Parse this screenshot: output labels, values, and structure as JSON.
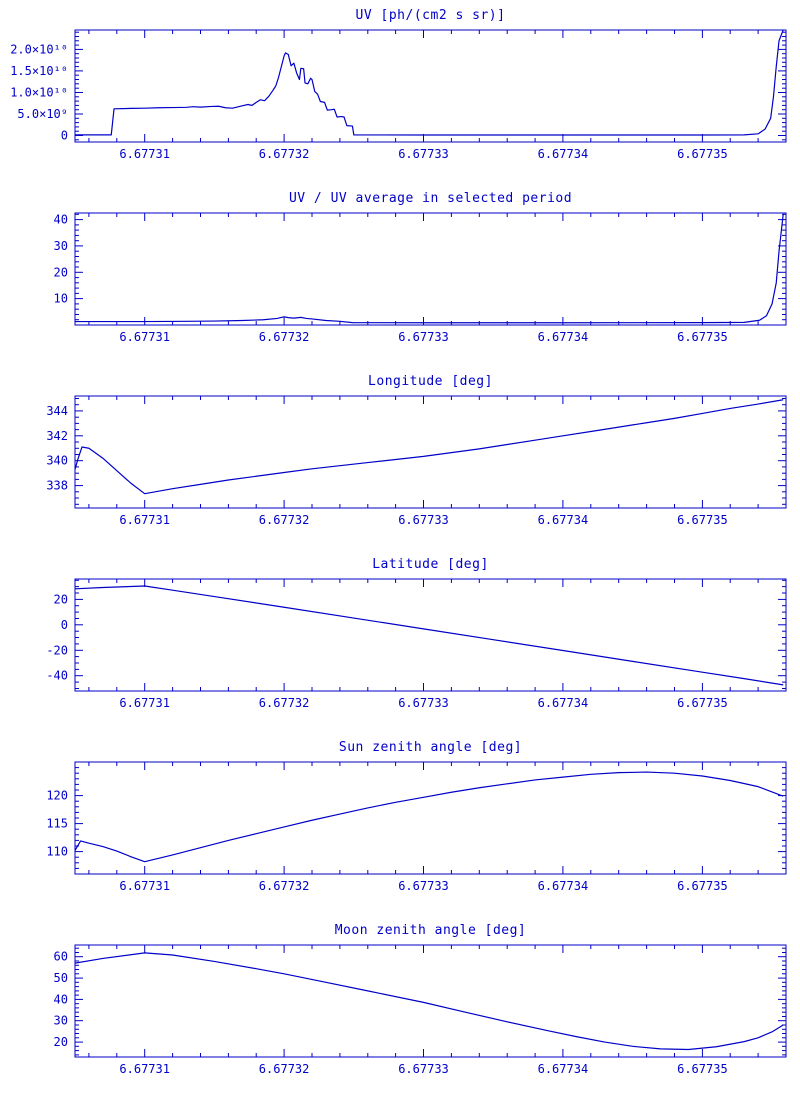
{
  "page": {
    "accent": "#0000C8",
    "background": "#FFFFFF"
  },
  "chart_data": [
    {
      "id": "uv",
      "type": "line",
      "title": "UV [ph/(cm2 s sr)]",
      "xlabel": "",
      "ylabel": "",
      "xlim": [
        6.677305,
        6.677356
      ],
      "ylim": [
        -1500000000.0,
        24500000000.0
      ],
      "x_ticks": [
        6.67731,
        6.67732,
        6.67733,
        6.67734,
        6.67735
      ],
      "x_tick_labels": [
        "6.67731",
        "6.67732",
        "6.67733",
        "6.67734",
        "6.67735"
      ],
      "x_minor_step": 2e-06,
      "y_ticks": [
        0,
        5000000000.0,
        10000000000.0,
        15000000000.0,
        20000000000.0
      ],
      "y_tick_labels": [
        "0",
        "5.0×10⁹",
        "1.0×10¹⁰",
        "1.5×10¹⁰",
        "2.0×10¹⁰"
      ],
      "y_minor_step": 1000000000.0,
      "points": [
        [
          6.677305,
          150000000.0
        ],
        [
          6.6773076,
          150000000.0
        ],
        [
          6.6773078,
          6200000000.0
        ],
        [
          6.677309,
          6300000000.0
        ],
        [
          6.67731,
          6350000000.0
        ],
        [
          6.677311,
          6450000000.0
        ],
        [
          6.677312,
          6500000000.0
        ],
        [
          6.677313,
          6550000000.0
        ],
        [
          6.6773135,
          6700000000.0
        ],
        [
          6.677314,
          6600000000.0
        ],
        [
          6.6773148,
          6750000000.0
        ],
        [
          6.6773153,
          6800000000.0
        ],
        [
          6.6773158,
          6450000000.0
        ],
        [
          6.6773163,
          6350000000.0
        ],
        [
          6.677317,
          6900000000.0
        ],
        [
          6.6773174,
          7200000000.0
        ],
        [
          6.6773177,
          7000000000.0
        ],
        [
          6.677318,
          7700000000.0
        ],
        [
          6.6773183,
          8300000000.0
        ],
        [
          6.6773186,
          8100000000.0
        ],
        [
          6.6773189,
          9100000000.0
        ],
        [
          6.6773192,
          10500000000.0
        ],
        [
          6.6773194,
          11500000000.0
        ],
        [
          6.6773196,
          13500000000.0
        ],
        [
          6.6773198,
          16000000000.0
        ],
        [
          6.67732,
          18500000000.0
        ],
        [
          6.6773201,
          19200000000.0
        ],
        [
          6.6773203,
          18800000000.0
        ],
        [
          6.6773205,
          16200000000.0
        ],
        [
          6.6773207,
          16800000000.0
        ],
        [
          6.6773209,
          14500000000.0
        ],
        [
          6.6773211,
          13000000000.0
        ],
        [
          6.6773212,
          15600000000.0
        ],
        [
          6.6773214,
          15500000000.0
        ],
        [
          6.6773215,
          12200000000.0
        ],
        [
          6.6773217,
          12000000000.0
        ],
        [
          6.6773219,
          13300000000.0
        ],
        [
          6.677322,
          13000000000.0
        ],
        [
          6.6773222,
          10200000000.0
        ],
        [
          6.6773224,
          9600000000.0
        ],
        [
          6.6773226,
          7900000000.0
        ],
        [
          6.6773229,
          7700000000.0
        ],
        [
          6.6773231,
          5900000000.0
        ],
        [
          6.6773234,
          6000000000.0
        ],
        [
          6.6773236,
          6100000000.0
        ],
        [
          6.6773238,
          4300000000.0
        ],
        [
          6.6773241,
          4400000000.0
        ],
        [
          6.6773243,
          4300000000.0
        ],
        [
          6.6773245,
          2300000000.0
        ],
        [
          6.6773249,
          2200000000.0
        ],
        [
          6.677325,
          150000000.0
        ],
        [
          6.67733,
          120000000.0
        ],
        [
          6.67734,
          120000000.0
        ],
        [
          6.67735,
          130000000.0
        ],
        [
          6.677353,
          150000000.0
        ],
        [
          6.677354,
          400000000.0
        ],
        [
          6.6773545,
          1500000000.0
        ],
        [
          6.6773549,
          4000000000.0
        ],
        [
          6.6773551,
          9000000000.0
        ],
        [
          6.6773553,
          16000000000.0
        ],
        [
          6.6773555,
          22000000000.0
        ],
        [
          6.6773558,
          24500000000.0
        ]
      ]
    },
    {
      "id": "uv-ratio",
      "type": "line",
      "title": "UV / UV average in selected period",
      "xlabel": "",
      "ylabel": "",
      "xlim": [
        6.677305,
        6.677356
      ],
      "ylim": [
        0,
        42.5
      ],
      "x_ticks": [
        6.67731,
        6.67732,
        6.67733,
        6.67734,
        6.67735
      ],
      "x_tick_labels": [
        "6.67731",
        "6.67732",
        "6.67733",
        "6.67734",
        "6.67735"
      ],
      "x_minor_step": 2e-06,
      "y_ticks": [
        10,
        20,
        30,
        40
      ],
      "y_tick_labels": [
        "10",
        "20",
        "30",
        "40"
      ],
      "y_minor_step": 2,
      "points": [
        [
          6.677305,
          1.3
        ],
        [
          6.67731,
          1.3
        ],
        [
          6.677313,
          1.4
        ],
        [
          6.677315,
          1.5
        ],
        [
          6.677317,
          1.7
        ],
        [
          6.6773185,
          2.0
        ],
        [
          6.6773195,
          2.5
        ],
        [
          6.67732,
          3.1
        ],
        [
          6.6773203,
          2.8
        ],
        [
          6.6773207,
          2.6
        ],
        [
          6.6773212,
          2.9
        ],
        [
          6.6773216,
          2.5
        ],
        [
          6.677322,
          2.3
        ],
        [
          6.677323,
          1.7
        ],
        [
          6.677324,
          1.4
        ],
        [
          6.6773249,
          0.9
        ],
        [
          6.67733,
          0.85
        ],
        [
          6.67734,
          0.85
        ],
        [
          6.67735,
          0.9
        ],
        [
          6.677353,
          1.0
        ],
        [
          6.6773541,
          1.8
        ],
        [
          6.6773546,
          3.5
        ],
        [
          6.677355,
          8
        ],
        [
          6.6773553,
          16
        ],
        [
          6.6773555,
          28
        ],
        [
          6.6773558,
          42
        ]
      ]
    },
    {
      "id": "longitude",
      "type": "line",
      "title": "Longitude [deg]",
      "xlabel": "",
      "ylabel": "",
      "xlim": [
        6.677305,
        6.677356
      ],
      "ylim": [
        336.2,
        345.2
      ],
      "x_ticks": [
        6.67731,
        6.67732,
        6.67733,
        6.67734,
        6.67735
      ],
      "x_tick_labels": [
        "6.67731",
        "6.67732",
        "6.67733",
        "6.67734",
        "6.67735"
      ],
      "x_minor_step": 2e-06,
      "y_ticks": [
        338,
        340,
        342,
        344
      ],
      "y_tick_labels": [
        "338",
        "340",
        "342",
        "344"
      ],
      "y_minor_step": 0.5,
      "points": [
        [
          6.677305,
          339.3
        ],
        [
          6.6773052,
          340.1
        ],
        [
          6.6773055,
          341.1
        ],
        [
          6.677306,
          341.0
        ],
        [
          6.677307,
          340.2
        ],
        [
          6.677308,
          339.2
        ],
        [
          6.677309,
          338.2
        ],
        [
          6.67731,
          337.35
        ],
        [
          6.677312,
          337.75
        ],
        [
          6.677314,
          338.1
        ],
        [
          6.677316,
          338.45
        ],
        [
          6.677318,
          338.75
        ],
        [
          6.67732,
          339.05
        ],
        [
          6.677322,
          339.35
        ],
        [
          6.677324,
          339.6
        ],
        [
          6.677326,
          339.85
        ],
        [
          6.677328,
          340.1
        ],
        [
          6.67733,
          340.35
        ],
        [
          6.677332,
          340.65
        ],
        [
          6.677334,
          340.95
        ],
        [
          6.677336,
          341.3
        ],
        [
          6.677338,
          341.65
        ],
        [
          6.67734,
          342.0
        ],
        [
          6.677342,
          342.35
        ],
        [
          6.677344,
          342.7
        ],
        [
          6.677346,
          343.05
        ],
        [
          6.677348,
          343.4
        ],
        [
          6.67735,
          343.8
        ],
        [
          6.677352,
          344.2
        ],
        [
          6.677354,
          344.55
        ],
        [
          6.6773558,
          344.9
        ]
      ]
    },
    {
      "id": "latitude",
      "type": "line",
      "title": "Latitude [deg]",
      "xlabel": "",
      "ylabel": "",
      "xlim": [
        6.677305,
        6.677356
      ],
      "ylim": [
        -52,
        36
      ],
      "x_ticks": [
        6.67731,
        6.67732,
        6.67733,
        6.67734,
        6.67735
      ],
      "x_tick_labels": [
        "6.67731",
        "6.67732",
        "6.67733",
        "6.67734",
        "6.67735"
      ],
      "x_minor_step": 2e-06,
      "y_ticks": [
        -40,
        -20,
        0,
        20
      ],
      "y_tick_labels": [
        "-40",
        "-20",
        "0",
        "20"
      ],
      "y_minor_step": 5,
      "points": [
        [
          6.677305,
          28.3
        ],
        [
          6.677307,
          29.3
        ],
        [
          6.67731,
          30.5
        ],
        [
          6.677312,
          27.2
        ],
        [
          6.677315,
          22.2
        ],
        [
          6.67732,
          13.8
        ],
        [
          6.677325,
          5.3
        ],
        [
          6.67733,
          -3.2
        ],
        [
          6.677335,
          -11.7
        ],
        [
          6.67734,
          -20.2
        ],
        [
          6.677345,
          -28.7
        ],
        [
          6.67735,
          -37.2
        ],
        [
          6.677353,
          -42.3
        ],
        [
          6.6773558,
          -47.2
        ]
      ]
    },
    {
      "id": "sun-zenith",
      "type": "line",
      "title": "Sun zenith angle [deg]",
      "xlabel": "",
      "ylabel": "",
      "xlim": [
        6.677305,
        6.677356
      ],
      "ylim": [
        106,
        126
      ],
      "x_ticks": [
        6.67731,
        6.67732,
        6.67733,
        6.67734,
        6.67735
      ],
      "x_tick_labels": [
        "6.67731",
        "6.67732",
        "6.67733",
        "6.67734",
        "6.67735"
      ],
      "x_minor_step": 2e-06,
      "y_ticks": [
        110,
        115,
        120
      ],
      "y_tick_labels": [
        "110",
        "115",
        "120"
      ],
      "y_minor_step": 1,
      "points": [
        [
          6.677305,
          110.2
        ],
        [
          6.6773054,
          111.9
        ],
        [
          6.677306,
          111.5
        ],
        [
          6.677307,
          110.9
        ],
        [
          6.677308,
          110.1
        ],
        [
          6.677309,
          109.1
        ],
        [
          6.67731,
          108.2
        ],
        [
          6.677312,
          109.4
        ],
        [
          6.677314,
          110.7
        ],
        [
          6.677316,
          112.0
        ],
        [
          6.677318,
          113.2
        ],
        [
          6.67732,
          114.4
        ],
        [
          6.677322,
          115.6
        ],
        [
          6.677324,
          116.7
        ],
        [
          6.677326,
          117.8
        ],
        [
          6.677328,
          118.8
        ],
        [
          6.67733,
          119.7
        ],
        [
          6.677332,
          120.6
        ],
        [
          6.677334,
          121.4
        ],
        [
          6.677336,
          122.1
        ],
        [
          6.677338,
          122.8
        ],
        [
          6.67734,
          123.3
        ],
        [
          6.677342,
          123.8
        ],
        [
          6.677344,
          124.1
        ],
        [
          6.677346,
          124.2
        ],
        [
          6.677348,
          124.0
        ],
        [
          6.67735,
          123.5
        ],
        [
          6.677352,
          122.7
        ],
        [
          6.677354,
          121.6
        ],
        [
          6.6773558,
          119.9
        ]
      ]
    },
    {
      "id": "moon-zenith",
      "type": "line",
      "title": "Moon zenith angle [deg]",
      "xlabel": "",
      "ylabel": "",
      "xlim": [
        6.677305,
        6.677356
      ],
      "ylim": [
        13,
        65.5
      ],
      "x_ticks": [
        6.67731,
        6.67732,
        6.67733,
        6.67734,
        6.67735
      ],
      "x_tick_labels": [
        "6.67731",
        "6.67732",
        "6.67733",
        "6.67734",
        "6.67735"
      ],
      "x_minor_step": 2e-06,
      "y_ticks": [
        20,
        30,
        40,
        50,
        60
      ],
      "y_tick_labels": [
        "20",
        "30",
        "40",
        "50",
        "60"
      ],
      "y_minor_step": 2,
      "points": [
        [
          6.677305,
          57
        ],
        [
          6.677307,
          59.2
        ],
        [
          6.67731,
          61.8
        ],
        [
          6.677312,
          60.8
        ],
        [
          6.677315,
          57.8
        ],
        [
          6.677318,
          54.4
        ],
        [
          6.67732,
          52
        ],
        [
          6.677323,
          48
        ],
        [
          6.677326,
          44
        ],
        [
          6.67733,
          38.6
        ],
        [
          6.677333,
          34
        ],
        [
          6.677336,
          29.5
        ],
        [
          6.677339,
          25.2
        ],
        [
          6.677341,
          22.5
        ],
        [
          6.677343,
          20
        ],
        [
          6.677345,
          18
        ],
        [
          6.677347,
          16.8
        ],
        [
          6.677349,
          16.5
        ],
        [
          6.677351,
          17.8
        ],
        [
          6.677353,
          20.2
        ],
        [
          6.677354,
          22
        ],
        [
          6.677355,
          24.8
        ],
        [
          6.6773558,
          28
        ]
      ]
    }
  ]
}
